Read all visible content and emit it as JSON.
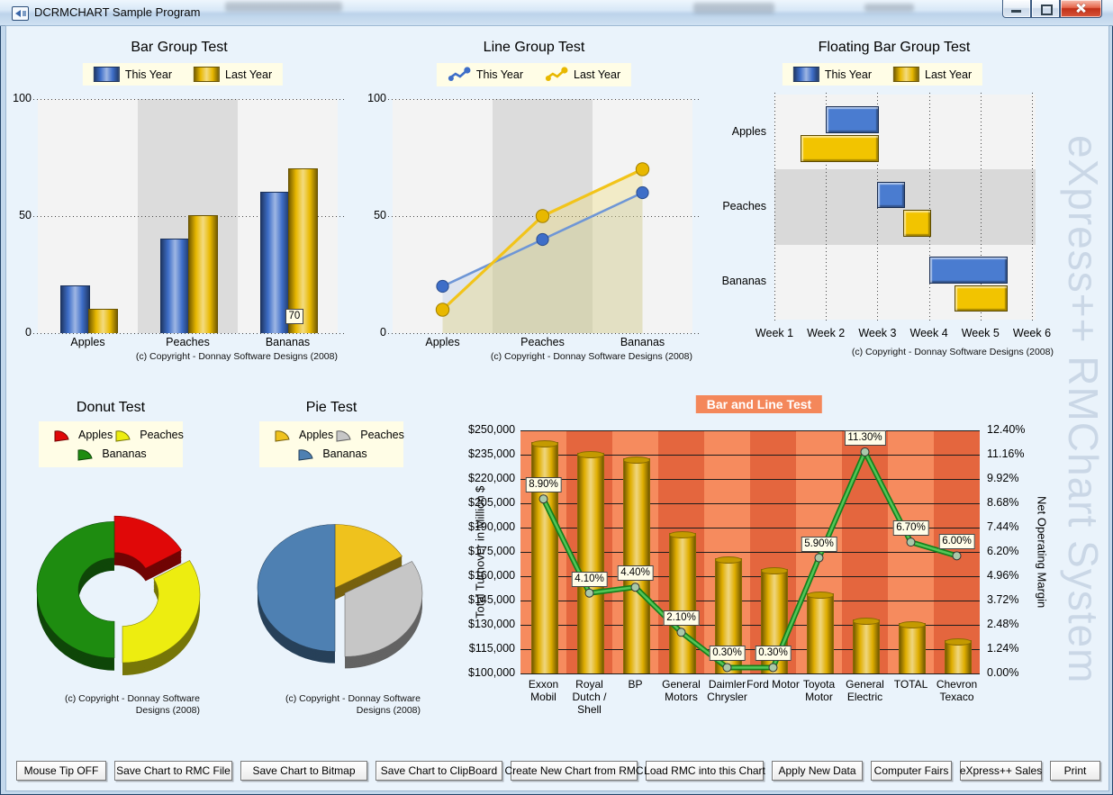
{
  "window": {
    "title": "DCRMCHART Sample Program"
  },
  "watermark": "eXpress++ RMChart System",
  "buttons": [
    "Mouse Tip OFF",
    "Save Chart to RMC File",
    "Save Chart to Bitmap",
    "Save Chart to ClipBoard",
    "Create New Chart from RMC",
    "Load RMC into this Chart",
    "Apply New Data",
    "Computer Fairs",
    "eXpress++ Sales",
    "Print"
  ],
  "chart_data": [
    {
      "id": "bar_group",
      "type": "bar",
      "title": "Bar Group Test",
      "categories": [
        "Apples",
        "Peaches",
        "Bananas"
      ],
      "series": [
        {
          "name": "This Year",
          "color": "#3E6EC8",
          "values": [
            20,
            40,
            60
          ]
        },
        {
          "name": "Last Year",
          "color": "#E8B800",
          "values": [
            10,
            50,
            70
          ]
        }
      ],
      "ylim": [
        0,
        100
      ],
      "yticks": [
        0,
        50,
        100
      ],
      "point_label": {
        "series": 1,
        "category": 2,
        "text": "70"
      },
      "copyright": "(c) Copyright - Donnay Software Designs (2008)"
    },
    {
      "id": "line_group",
      "type": "line",
      "title": "Line Group Test",
      "categories": [
        "Apples",
        "Peaches",
        "Bananas"
      ],
      "series": [
        {
          "name": "This Year",
          "color": "#3E6EC8",
          "values": [
            20,
            40,
            60
          ]
        },
        {
          "name": "Last Year",
          "color": "#E8B800",
          "values": [
            10,
            50,
            70
          ]
        }
      ],
      "ylim": [
        0,
        100
      ],
      "yticks": [
        0,
        50,
        100
      ],
      "copyright": "(c) Copyright - Donnay Software Designs (2008)"
    },
    {
      "id": "floating_bar",
      "type": "floating_bar",
      "title": "Floating Bar Group Test",
      "categories": [
        "Apples",
        "Peaches",
        "Bananas"
      ],
      "xticks": [
        "Week 1",
        "Week 2",
        "Week 3",
        "Week 4",
        "Week 5",
        "Week 6"
      ],
      "xlim": [
        1,
        6.07
      ],
      "series": [
        {
          "name": "This Year",
          "color": "#3E6EC8",
          "ranges": [
            [
              2,
              3
            ],
            [
              3,
              3.5
            ],
            [
              4,
              5.5
            ]
          ]
        },
        {
          "name": "Last Year",
          "color": "#E8B800",
          "ranges": [
            [
              1.5,
              3
            ],
            [
              3.5,
              4
            ],
            [
              4.5,
              5.5
            ]
          ]
        }
      ],
      "copyright": "(c) Copyright - Donnay Software Designs (2008)"
    },
    {
      "id": "donut",
      "type": "donut",
      "title": "Donut Test",
      "slices": [
        {
          "label": "Apples",
          "value": 20,
          "color": "#E00808"
        },
        {
          "label": "Peaches",
          "value": 40,
          "color": "#EDED10"
        },
        {
          "label": "Bananas",
          "value": 60,
          "color": "#1E8C10"
        }
      ],
      "copyright": "(c) Copyright - Donnay Software Designs (2008)"
    },
    {
      "id": "pie",
      "type": "pie",
      "title": "Pie Test",
      "slices": [
        {
          "label": "Apples",
          "value": 20,
          "color": "#EFC21D"
        },
        {
          "label": "Peaches",
          "value": 40,
          "color": "#C6C6C6"
        },
        {
          "label": "Bananas",
          "value": 60,
          "color": "#4E80B2"
        }
      ],
      "copyright": "(c) Copyright - Donnay Software Designs (2008)"
    },
    {
      "id": "bar_line",
      "type": "bar+line",
      "title": "Bar and Line Test",
      "categories": [
        "Exxon Mobil",
        "Royal Dutch / Shell",
        "BP",
        "General Motors",
        "Daimler Chrysler",
        "Ford Motor",
        "Toyota Motor",
        "General Electric",
        "TOTAL",
        "Chevron Texaco"
      ],
      "bars": {
        "name": "Total Turnover in Million $",
        "color": "#E0AE00",
        "values": [
          242500,
          235500,
          232500,
          186000,
          170500,
          164000,
          149000,
          133000,
          130500,
          120000
        ]
      },
      "line": {
        "name": "Net Operating Margin",
        "color": "#2EA83A",
        "values": [
          8.9,
          4.1,
          4.4,
          2.1,
          0.3,
          0.3,
          5.9,
          11.3,
          6.7,
          6.0
        ],
        "point_labels": [
          "8.90%",
          "4.10%",
          "4.40%",
          "2.10%",
          "0.30%",
          "0.30%",
          "5.90%",
          "11.30%",
          "6.70%",
          "6.00%"
        ]
      },
      "left_axis": {
        "title": "Total Turnover  in Million $",
        "min": 100000,
        "max": 250000,
        "ticks": [
          "$250,000",
          "$235,000",
          "$220,000",
          "$205,000",
          "$190,000",
          "$175,000",
          "$160,000",
          "$145,000",
          "$130,000",
          "$115,000",
          "$100,000"
        ]
      },
      "right_axis": {
        "title": "Net Operating Margin",
        "min": 0,
        "max": 12.4,
        "ticks": [
          "12.40%",
          "11.16%",
          "9.92%",
          "8.68%",
          "7.44%",
          "6.20%",
          "4.96%",
          "3.72%",
          "2.48%",
          "1.24%",
          "0.00%"
        ]
      }
    }
  ]
}
